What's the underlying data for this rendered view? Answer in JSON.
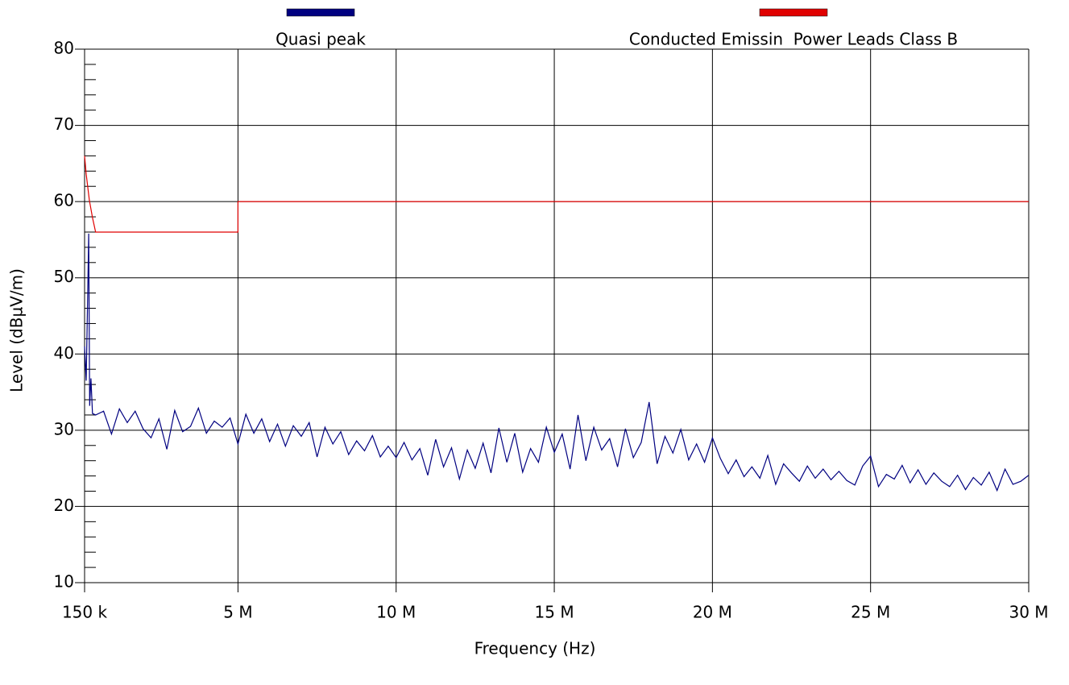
{
  "chart_data": {
    "type": "line",
    "xlabel": "Frequency (Hz)",
    "ylabel": "Level (dBµV/m)",
    "xlim": [
      150000,
      30000000
    ],
    "xticks": [
      {
        "value": 150000,
        "label": "150 k"
      },
      {
        "value": 5000000,
        "label": "5 M"
      },
      {
        "value": 10000000,
        "label": "10 M"
      },
      {
        "value": 15000000,
        "label": "15 M"
      },
      {
        "value": 20000000,
        "label": "20 M"
      },
      {
        "value": 25000000,
        "label": "25 M"
      },
      {
        "value": 30000000,
        "label": "30 M"
      }
    ],
    "ylim": [
      10,
      80
    ],
    "yticks": [
      10,
      20,
      30,
      40,
      50,
      60,
      70,
      80
    ],
    "y_minor_ticks": [
      12,
      14,
      16,
      18,
      22,
      24,
      26,
      28,
      32,
      34,
      36,
      38,
      42,
      44,
      46,
      48,
      52,
      54,
      56,
      58,
      62,
      64,
      66,
      68,
      72,
      74,
      76,
      78
    ],
    "grid": true,
    "series": [
      {
        "name": "Quasi peak",
        "color": "#000080",
        "x": [
          150000,
          200000,
          250000,
          280000,
          310000,
          350000,
          400000,
          500000,
          750000,
          1000000,
          1250000,
          1500000,
          1750000,
          2000000,
          2250000,
          2500000,
          2750000,
          3000000,
          3250000,
          3500000,
          3750000,
          4000000,
          4250000,
          4500000,
          4750000,
          5000000,
          5250000,
          5500000,
          5750000,
          6000000,
          6250000,
          6500000,
          6750000,
          7000000,
          7250000,
          7500000,
          7750000,
          8000000,
          8250000,
          8500000,
          8750000,
          9000000,
          9250000,
          9500000,
          9750000,
          10000000,
          10250000,
          10500000,
          10750000,
          11000000,
          11250000,
          11500000,
          11750000,
          12000000,
          12250000,
          12500000,
          12750000,
          13000000,
          13250000,
          13500000,
          13750000,
          14000000,
          14250000,
          14500000,
          14750000,
          15000000,
          15250000,
          15500000,
          15750000,
          16000000,
          16250000,
          16500000,
          16750000,
          17000000,
          17250000,
          17500000,
          17750000,
          18000000,
          18250000,
          18500000,
          18750000,
          19000000,
          19250000,
          19500000,
          19750000,
          20000000,
          20250000,
          20500000,
          20750000,
          21000000,
          21250000,
          21500000,
          21750000,
          22000000,
          22250000,
          22500000,
          22750000,
          23000000,
          23250000,
          23500000,
          23750000,
          24000000,
          24250000,
          24500000,
          24750000,
          25000000,
          25250000,
          25500000,
          25750000,
          26000000,
          26250000,
          26500000,
          26750000,
          27000000,
          27250000,
          27500000,
          27750000,
          28000000,
          28250000,
          28500000,
          28750000,
          29000000,
          29250000,
          29500000,
          29750000,
          30000000
        ],
        "values": [
          41,
          36.5,
          48,
          55.8,
          33.2,
          36.8,
          32.2,
          32,
          32.5,
          29.5,
          32.8,
          31,
          32.5,
          30.2,
          29,
          31.5,
          27.5,
          32.6,
          29.8,
          30.5,
          32.9,
          29.6,
          31.2,
          30.4,
          31.6,
          28.2,
          32.1,
          29.6,
          31.5,
          28.5,
          30.8,
          27.9,
          30.6,
          29.2,
          31,
          26.5,
          30.4,
          28.2,
          29.8,
          26.8,
          28.6,
          27.3,
          29.3,
          26.5,
          27.9,
          26.4,
          28.4,
          26.1,
          27.6,
          24.1,
          28.8,
          25.2,
          27.7,
          23.6,
          27.4,
          25,
          28.3,
          24.4,
          30.3,
          25.8,
          29.6,
          24.5,
          27.6,
          25.8,
          30.4,
          27.1,
          29.5,
          24.9,
          32,
          26,
          30.4,
          27.4,
          28.9,
          25.2,
          30.2,
          26.4,
          28.4,
          33.7,
          25.6,
          29.2,
          27,
          30.1,
          26.1,
          28.2,
          25.8,
          29,
          26.3,
          24.3,
          26.1,
          23.9,
          25.2,
          23.7,
          26.7,
          22.9,
          25.6,
          24.4,
          23.3,
          25.3,
          23.7,
          24.9,
          23.5,
          24.6,
          23.4,
          22.8,
          25.3,
          26.6,
          22.6,
          24.2,
          23.6,
          25.4,
          23.1,
          24.8,
          22.9,
          24.4,
          23.3,
          22.6,
          24.1,
          22.2,
          23.8,
          22.8,
          24.5,
          22.1,
          24.9,
          22.9,
          23.3,
          24.1
        ]
      },
      {
        "name": "Conducted Emissin  Power Leads Class B",
        "color": "#e00000",
        "x": [
          150000,
          200000,
          300000,
          400000,
          500000,
          5000000,
          5000000,
          30000000
        ],
        "values": [
          66,
          63.6,
          60.2,
          57.9,
          56,
          56,
          60,
          60
        ]
      }
    ]
  }
}
